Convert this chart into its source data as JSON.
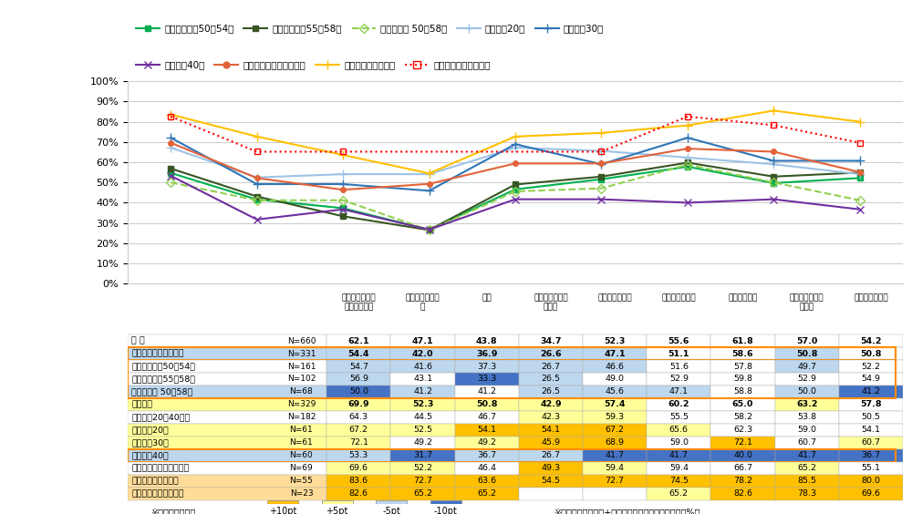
{
  "categories": [
    "責任ある仕事を\n任されている",
    "仕事での成長実\n感",
    "報酬",
    "昇進、昇格する\n可能性",
    "上司からの期待",
    "周囲からの期待",
    "職場の雰囲気",
    "職場や会社への\n貢献度",
    "社会への貢献度"
  ],
  "series": [
    {
      "label": "ベテラン社員50～54歳",
      "color": "#00B050",
      "style": "-",
      "marker": "s",
      "values": [
        54.7,
        41.6,
        37.3,
        26.7,
        46.6,
        51.6,
        57.8,
        49.7,
        52.2
      ]
    },
    {
      "label": "ベテラン社員55～58歳",
      "color": "#375623",
      "style": "-",
      "marker": "s",
      "values": [
        56.9,
        43.1,
        33.3,
        26.5,
        49.0,
        52.9,
        59.8,
        52.9,
        54.9
      ]
    },
    {
      "label": "ポストオフ 50～58歳",
      "color": "#92D050",
      "style": "--",
      "marker": "D",
      "values": [
        50.0,
        41.2,
        41.2,
        26.5,
        45.6,
        47.1,
        58.8,
        50.0,
        41.2
      ]
    },
    {
      "label": "一般社員20代",
      "color": "#9DC3E6",
      "style": "-",
      "marker": "+",
      "values": [
        67.2,
        52.5,
        54.1,
        54.1,
        67.2,
        65.6,
        62.3,
        59.0,
        54.1
      ]
    },
    {
      "label": "一般社員30代",
      "color": "#2F75B6",
      "style": "-",
      "marker": "+",
      "values": [
        72.1,
        49.2,
        49.2,
        45.9,
        68.9,
        59.0,
        72.1,
        60.7,
        60.7
      ]
    },
    {
      "label": "一般社員40代",
      "color": "#7030A0",
      "style": "-",
      "marker": "x",
      "values": [
        53.3,
        31.7,
        36.7,
        26.7,
        41.7,
        41.7,
        40.0,
        41.7,
        36.7
      ]
    },
    {
      "label": "マネジャー（課長以上）",
      "color": "#E2633A",
      "style": "-",
      "marker": "o",
      "values": [
        69.6,
        52.2,
        46.4,
        49.3,
        59.4,
        59.4,
        66.7,
        65.2,
        55.1
      ]
    },
    {
      "label": "人事部（係長以上）",
      "color": "#FFC000",
      "style": "-",
      "marker": "+",
      "values": [
        83.6,
        72.7,
        63.6,
        54.5,
        72.7,
        74.5,
        78.2,
        85.5,
        80.0
      ]
    },
    {
      "label": "経営層（経営・役員）",
      "color": "#FF0000",
      "style": ":",
      "marker": "s",
      "values": [
        82.6,
        65.2,
        65.2,
        null,
        null,
        65.2,
        82.6,
        78.3,
        69.6
      ]
    }
  ],
  "table_rows": [
    {
      "label": "全 体",
      "n": "N=660",
      "values": [
        62.1,
        47.1,
        43.8,
        34.7,
        52.3,
        55.6,
        61.8,
        57.0,
        54.2
      ],
      "bold": true,
      "bg": "white"
    },
    {
      "label": "非役職ベテラン社員計",
      "n": "N=331",
      "values": [
        54.4,
        42.0,
        36.9,
        26.6,
        47.1,
        51.1,
        58.6,
        50.8,
        50.8
      ],
      "bold": true,
      "bg": "#BDD7EE",
      "outline": "orange"
    },
    {
      "label": "ベテラン社員50～54歳",
      "n": "N=161",
      "values": [
        54.7,
        41.6,
        37.3,
        26.7,
        46.6,
        51.6,
        57.8,
        49.7,
        52.2
      ],
      "bold": false,
      "bg": "white"
    },
    {
      "label": "ベテラン社員55～58歳",
      "n": "N=102",
      "values": [
        56.9,
        43.1,
        33.3,
        26.5,
        49.0,
        52.9,
        59.8,
        52.9,
        54.9
      ],
      "bold": false,
      "bg": "white"
    },
    {
      "label": "ポストオフ 50～58歳",
      "n": "N=68",
      "values": [
        50.0,
        41.2,
        41.2,
        26.5,
        45.6,
        47.1,
        58.8,
        50.0,
        41.2
      ],
      "bold": false,
      "bg": "#BDD7EE"
    },
    {
      "label": "周囲者計",
      "n": "N=329",
      "values": [
        69.9,
        52.3,
        50.8,
        42.9,
        57.4,
        60.2,
        65.0,
        63.2,
        57.8
      ],
      "bold": true,
      "bg": "#FFFF99"
    },
    {
      "label": "一般社員20～40代計",
      "n": "N=182",
      "values": [
        64.3,
        44.5,
        46.7,
        42.3,
        59.3,
        55.5,
        58.2,
        53.8,
        50.5
      ],
      "bold": false,
      "bg": "white"
    },
    {
      "label": "一般社員20代",
      "n": "N=61",
      "values": [
        67.2,
        52.5,
        54.1,
        54.1,
        67.2,
        65.6,
        62.3,
        59.0,
        54.1
      ],
      "bold": false,
      "bg": "#FFFF99"
    },
    {
      "label": "一般社員30代",
      "n": "N=61",
      "values": [
        72.1,
        49.2,
        49.2,
        45.9,
        68.9,
        59.0,
        72.1,
        60.7,
        60.7
      ],
      "bold": false,
      "bg": "#FFFF99"
    },
    {
      "label": "一般社員40代",
      "n": "N=60",
      "values": [
        53.3,
        31.7,
        36.7,
        26.7,
        41.7,
        41.7,
        40.0,
        41.7,
        36.7
      ],
      "bold": false,
      "bg": "#BDD7EE",
      "outline": "orange"
    },
    {
      "label": "マネジャー（課長以上）",
      "n": "N=69",
      "values": [
        69.6,
        52.2,
        46.4,
        49.3,
        59.4,
        59.4,
        66.7,
        65.2,
        55.1
      ],
      "bold": false,
      "bg": "white"
    },
    {
      "label": "人事部（係長以上）",
      "n": "N=55",
      "values": [
        83.6,
        72.7,
        63.6,
        54.5,
        72.7,
        74.5,
        78.2,
        85.5,
        80.0
      ],
      "bold": false,
      "bg": "#FFDD99"
    },
    {
      "label": "経営層（経営・役員）",
      "n": "N=23",
      "values": [
        82.6,
        65.2,
        65.2,
        null,
        null,
        65.2,
        82.6,
        78.3,
        69.6
      ],
      "bold": false,
      "bg": "#FFDD99"
    }
  ],
  "legend_rows": [
    [
      "ベテラン社員50～54歳",
      "ベテラン社員55～58歳",
      "ポストオフ 50～58歳",
      "一般社員20代",
      "一般社員30代"
    ],
    [
      "一般社員40代",
      "マネジャー（課長以上）",
      "人事部（係長以上）",
      "経営層（経営・役員）"
    ]
  ],
  "footnote_left": "※全体に比較して",
  "footnote_colors": [
    "#FFC000",
    "#FFFF99",
    "#BDD7EE",
    "#4472C4"
  ],
  "footnote_labels": [
    "+10pt",
    "+5pt",
    "-5pt",
    "-10pt"
  ],
  "footnote_right": "※数値は、「満足」+「やや満足」と回答した割合（%）",
  "ylim": [
    0,
    100
  ],
  "yticks": [
    0,
    10,
    20,
    30,
    40,
    50,
    60,
    70,
    80,
    90,
    100
  ],
  "bg_color": "#FFFFFF",
  "grid_color": "#CCCCCC"
}
